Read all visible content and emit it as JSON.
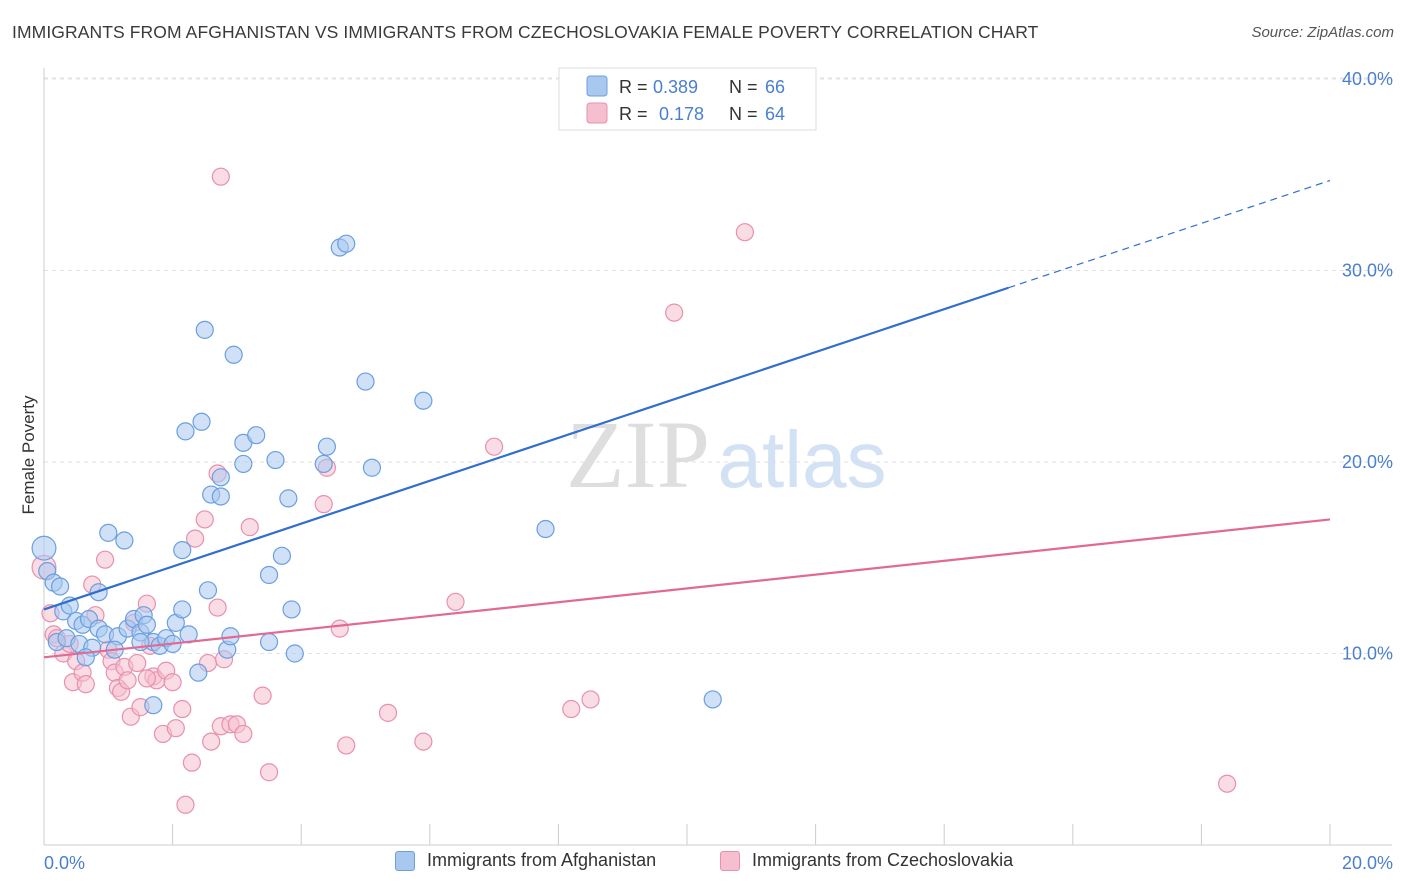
{
  "title": "IMMIGRANTS FROM AFGHANISTAN VS IMMIGRANTS FROM CZECHOSLOVAKIA FEMALE POVERTY CORRELATION CHART",
  "source": "Source: ZipAtlas.com",
  "watermark": {
    "zip": "ZIP",
    "atlas": "atlas"
  },
  "colors": {
    "blue_fill": "#a9c8f0",
    "blue_stroke": "#6a9fe0",
    "blue_line": "#2f6fd0",
    "pink_fill": "#f5bfd0",
    "pink_stroke": "#e890ae",
    "pink_line": "#e06a94",
    "axis_text": "#4a7fd0"
  },
  "legend_top": {
    "rows": [
      {
        "r_label": "R = ",
        "r_value": "0.389",
        "n_label": "N = ",
        "n_value": "66"
      },
      {
        "r_label": "R = ",
        "r_value": "0.178",
        "n_label": "N = ",
        "n_value": "64"
      }
    ]
  },
  "legend_bottom": {
    "items": [
      {
        "label": "Immigrants from Afghanistan"
      },
      {
        "label": "Immigrants from Czechoslovakia"
      }
    ]
  },
  "chart_data": {
    "type": "scatter",
    "title": "IMMIGRANTS FROM AFGHANISTAN VS IMMIGRANTS FROM CZECHOSLOVAKIA FEMALE POVERTY CORRELATION CHART",
    "xlabel": "",
    "ylabel": "Female Poverty",
    "xlim": [
      0,
      20
    ],
    "ylim": [
      0,
      40
    ],
    "x_tick_labels": [
      "0.0%",
      "20.0%"
    ],
    "y_ticks": [
      10,
      20,
      30,
      40
    ],
    "y_tick_labels": [
      "10.0%",
      "20.0%",
      "30.0%",
      "40.0%"
    ],
    "grid": true,
    "legend_position": "top-center",
    "series": [
      {
        "name": "Immigrants from Afghanistan",
        "R": 0.389,
        "N": 66,
        "trend": {
          "x0": 0,
          "y0": 12.3,
          "x1": 15.0,
          "y1": 29.1,
          "dash_to_x": 20.0,
          "dash_to_y": 34.7
        },
        "points": [
          [
            0.0,
            15.5,
            1.4
          ],
          [
            0.05,
            14.3,
            1.0
          ],
          [
            0.15,
            13.7,
            1.0
          ],
          [
            0.3,
            12.2,
            1.0
          ],
          [
            0.25,
            13.5,
            1.0
          ],
          [
            0.4,
            12.5,
            1.0
          ],
          [
            0.5,
            11.7,
            1.0
          ],
          [
            0.6,
            11.5,
            1.0
          ],
          [
            0.7,
            11.8,
            1.0
          ],
          [
            0.85,
            11.3,
            1.0
          ],
          [
            0.2,
            10.6,
            1.0
          ],
          [
            0.35,
            10.8,
            1.0
          ],
          [
            0.55,
            10.5,
            1.0
          ],
          [
            0.75,
            10.3,
            1.0
          ],
          [
            0.95,
            11.0,
            1.0
          ],
          [
            1.15,
            10.9,
            1.0
          ],
          [
            1.3,
            11.3,
            1.0
          ],
          [
            1.4,
            11.8,
            1.0
          ],
          [
            1.5,
            11.1,
            1.0
          ],
          [
            1.55,
            12.0,
            1.0
          ],
          [
            1.6,
            11.5,
            1.0
          ],
          [
            1.7,
            10.6,
            1.0
          ],
          [
            1.8,
            10.4,
            1.0
          ],
          [
            1.9,
            10.8,
            1.0
          ],
          [
            2.05,
            11.6,
            1.0
          ],
          [
            2.15,
            12.3,
            1.0
          ],
          [
            2.25,
            11.0,
            1.0
          ],
          [
            2.55,
            13.3,
            1.0
          ],
          [
            2.4,
            9.0,
            1.0
          ],
          [
            2.85,
            10.2,
            1.0
          ],
          [
            2.9,
            10.9,
            1.0
          ],
          [
            3.5,
            10.6,
            1.0
          ],
          [
            3.85,
            12.3,
            1.0
          ],
          [
            3.9,
            10.0,
            1.0
          ],
          [
            1.0,
            16.3,
            1.0
          ],
          [
            1.25,
            15.9,
            1.0
          ],
          [
            2.15,
            15.4,
            1.0
          ],
          [
            3.5,
            14.1,
            1.0
          ],
          [
            3.7,
            15.1,
            1.0
          ],
          [
            0.85,
            13.2,
            1.0
          ],
          [
            2.2,
            21.6,
            1.0
          ],
          [
            2.45,
            22.1,
            1.0
          ],
          [
            2.6,
            18.3,
            1.0
          ],
          [
            2.75,
            18.2,
            1.0
          ],
          [
            2.75,
            19.2,
            1.0
          ],
          [
            3.1,
            19.9,
            1.0
          ],
          [
            3.1,
            21.0,
            1.0
          ],
          [
            3.3,
            21.4,
            1.0
          ],
          [
            3.6,
            20.1,
            1.0
          ],
          [
            3.8,
            18.1,
            1.0
          ],
          [
            4.35,
            19.9,
            1.0
          ],
          [
            4.4,
            20.8,
            1.0
          ],
          [
            5.1,
            19.7,
            1.0
          ],
          [
            5.0,
            24.2,
            1.0
          ],
          [
            5.9,
            23.2,
            1.0
          ],
          [
            2.5,
            26.9,
            1.0
          ],
          [
            2.95,
            25.6,
            1.0
          ],
          [
            4.6,
            31.2,
            1.0
          ],
          [
            4.7,
            31.4,
            1.0
          ],
          [
            7.8,
            16.5,
            1.0
          ],
          [
            10.4,
            7.6,
            1.0
          ],
          [
            1.7,
            7.3,
            1.0
          ],
          [
            1.5,
            10.6,
            1.0
          ],
          [
            0.65,
            9.8,
            1.0
          ],
          [
            1.1,
            10.2,
            1.0
          ],
          [
            2.0,
            10.5,
            1.0
          ]
        ]
      },
      {
        "name": "Immigrants from Czechoslovakia",
        "R": 0.178,
        "N": 64,
        "trend": {
          "x0": 0,
          "y0": 9.8,
          "x1": 20.0,
          "y1": 17.0
        },
        "points": [
          [
            0.0,
            14.5,
            1.4
          ],
          [
            0.1,
            12.1,
            1.0
          ],
          [
            0.15,
            11.0,
            1.0
          ],
          [
            0.2,
            10.8,
            1.0
          ],
          [
            0.3,
            10.0,
            1.0
          ],
          [
            0.4,
            10.5,
            1.0
          ],
          [
            0.45,
            8.5,
            1.0
          ],
          [
            0.5,
            9.6,
            1.0
          ],
          [
            0.6,
            9.0,
            1.0
          ],
          [
            0.65,
            8.4,
            1.0
          ],
          [
            0.75,
            13.6,
            1.0
          ],
          [
            0.8,
            12.0,
            1.0
          ],
          [
            0.95,
            14.9,
            1.0
          ],
          [
            1.0,
            10.2,
            1.0
          ],
          [
            1.05,
            9.6,
            1.0
          ],
          [
            1.1,
            9.0,
            1.0
          ],
          [
            1.15,
            8.2,
            1.0
          ],
          [
            1.2,
            8.0,
            1.0
          ],
          [
            1.25,
            9.3,
            1.0
          ],
          [
            1.3,
            8.6,
            1.0
          ],
          [
            1.35,
            6.7,
            1.0
          ],
          [
            1.4,
            11.6,
            1.0
          ],
          [
            1.45,
            9.5,
            1.0
          ],
          [
            1.5,
            7.2,
            1.0
          ],
          [
            1.6,
            12.6,
            1.0
          ],
          [
            1.65,
            10.4,
            1.0
          ],
          [
            1.7,
            8.8,
            1.0
          ],
          [
            1.75,
            8.6,
            1.0
          ],
          [
            1.85,
            5.8,
            1.0
          ],
          [
            1.9,
            9.1,
            1.0
          ],
          [
            2.0,
            8.5,
            1.0
          ],
          [
            2.05,
            6.1,
            1.0
          ],
          [
            2.15,
            7.1,
            1.0
          ],
          [
            2.2,
            2.1,
            1.0
          ],
          [
            2.3,
            4.3,
            1.0
          ],
          [
            2.35,
            16.0,
            1.0
          ],
          [
            2.5,
            17.0,
            1.0
          ],
          [
            2.55,
            9.5,
            1.0
          ],
          [
            2.6,
            5.4,
            1.0
          ],
          [
            2.7,
            12.4,
            1.0
          ],
          [
            2.75,
            6.2,
            1.0
          ],
          [
            2.8,
            9.7,
            1.0
          ],
          [
            2.9,
            6.3,
            1.0
          ],
          [
            3.0,
            6.3,
            1.0
          ],
          [
            3.1,
            5.8,
            1.0
          ],
          [
            3.2,
            16.6,
            1.0
          ],
          [
            3.4,
            7.8,
            1.0
          ],
          [
            3.5,
            3.8,
            1.0
          ],
          [
            2.75,
            34.9,
            1.0
          ],
          [
            2.7,
            19.4,
            1.0
          ],
          [
            4.35,
            17.8,
            1.0
          ],
          [
            4.4,
            19.7,
            1.0
          ],
          [
            4.6,
            11.3,
            1.0
          ],
          [
            4.7,
            5.2,
            1.0
          ],
          [
            5.35,
            6.9,
            1.0
          ],
          [
            5.9,
            5.4,
            1.0
          ],
          [
            6.4,
            12.7,
            1.0
          ],
          [
            7.0,
            20.8,
            1.0
          ],
          [
            8.2,
            7.1,
            1.0
          ],
          [
            8.5,
            7.6,
            1.0
          ],
          [
            9.8,
            27.8,
            1.0
          ],
          [
            10.9,
            32.0,
            1.0
          ],
          [
            18.4,
            3.2,
            1.0
          ],
          [
            1.6,
            8.7,
            1.0
          ]
        ]
      }
    ]
  }
}
